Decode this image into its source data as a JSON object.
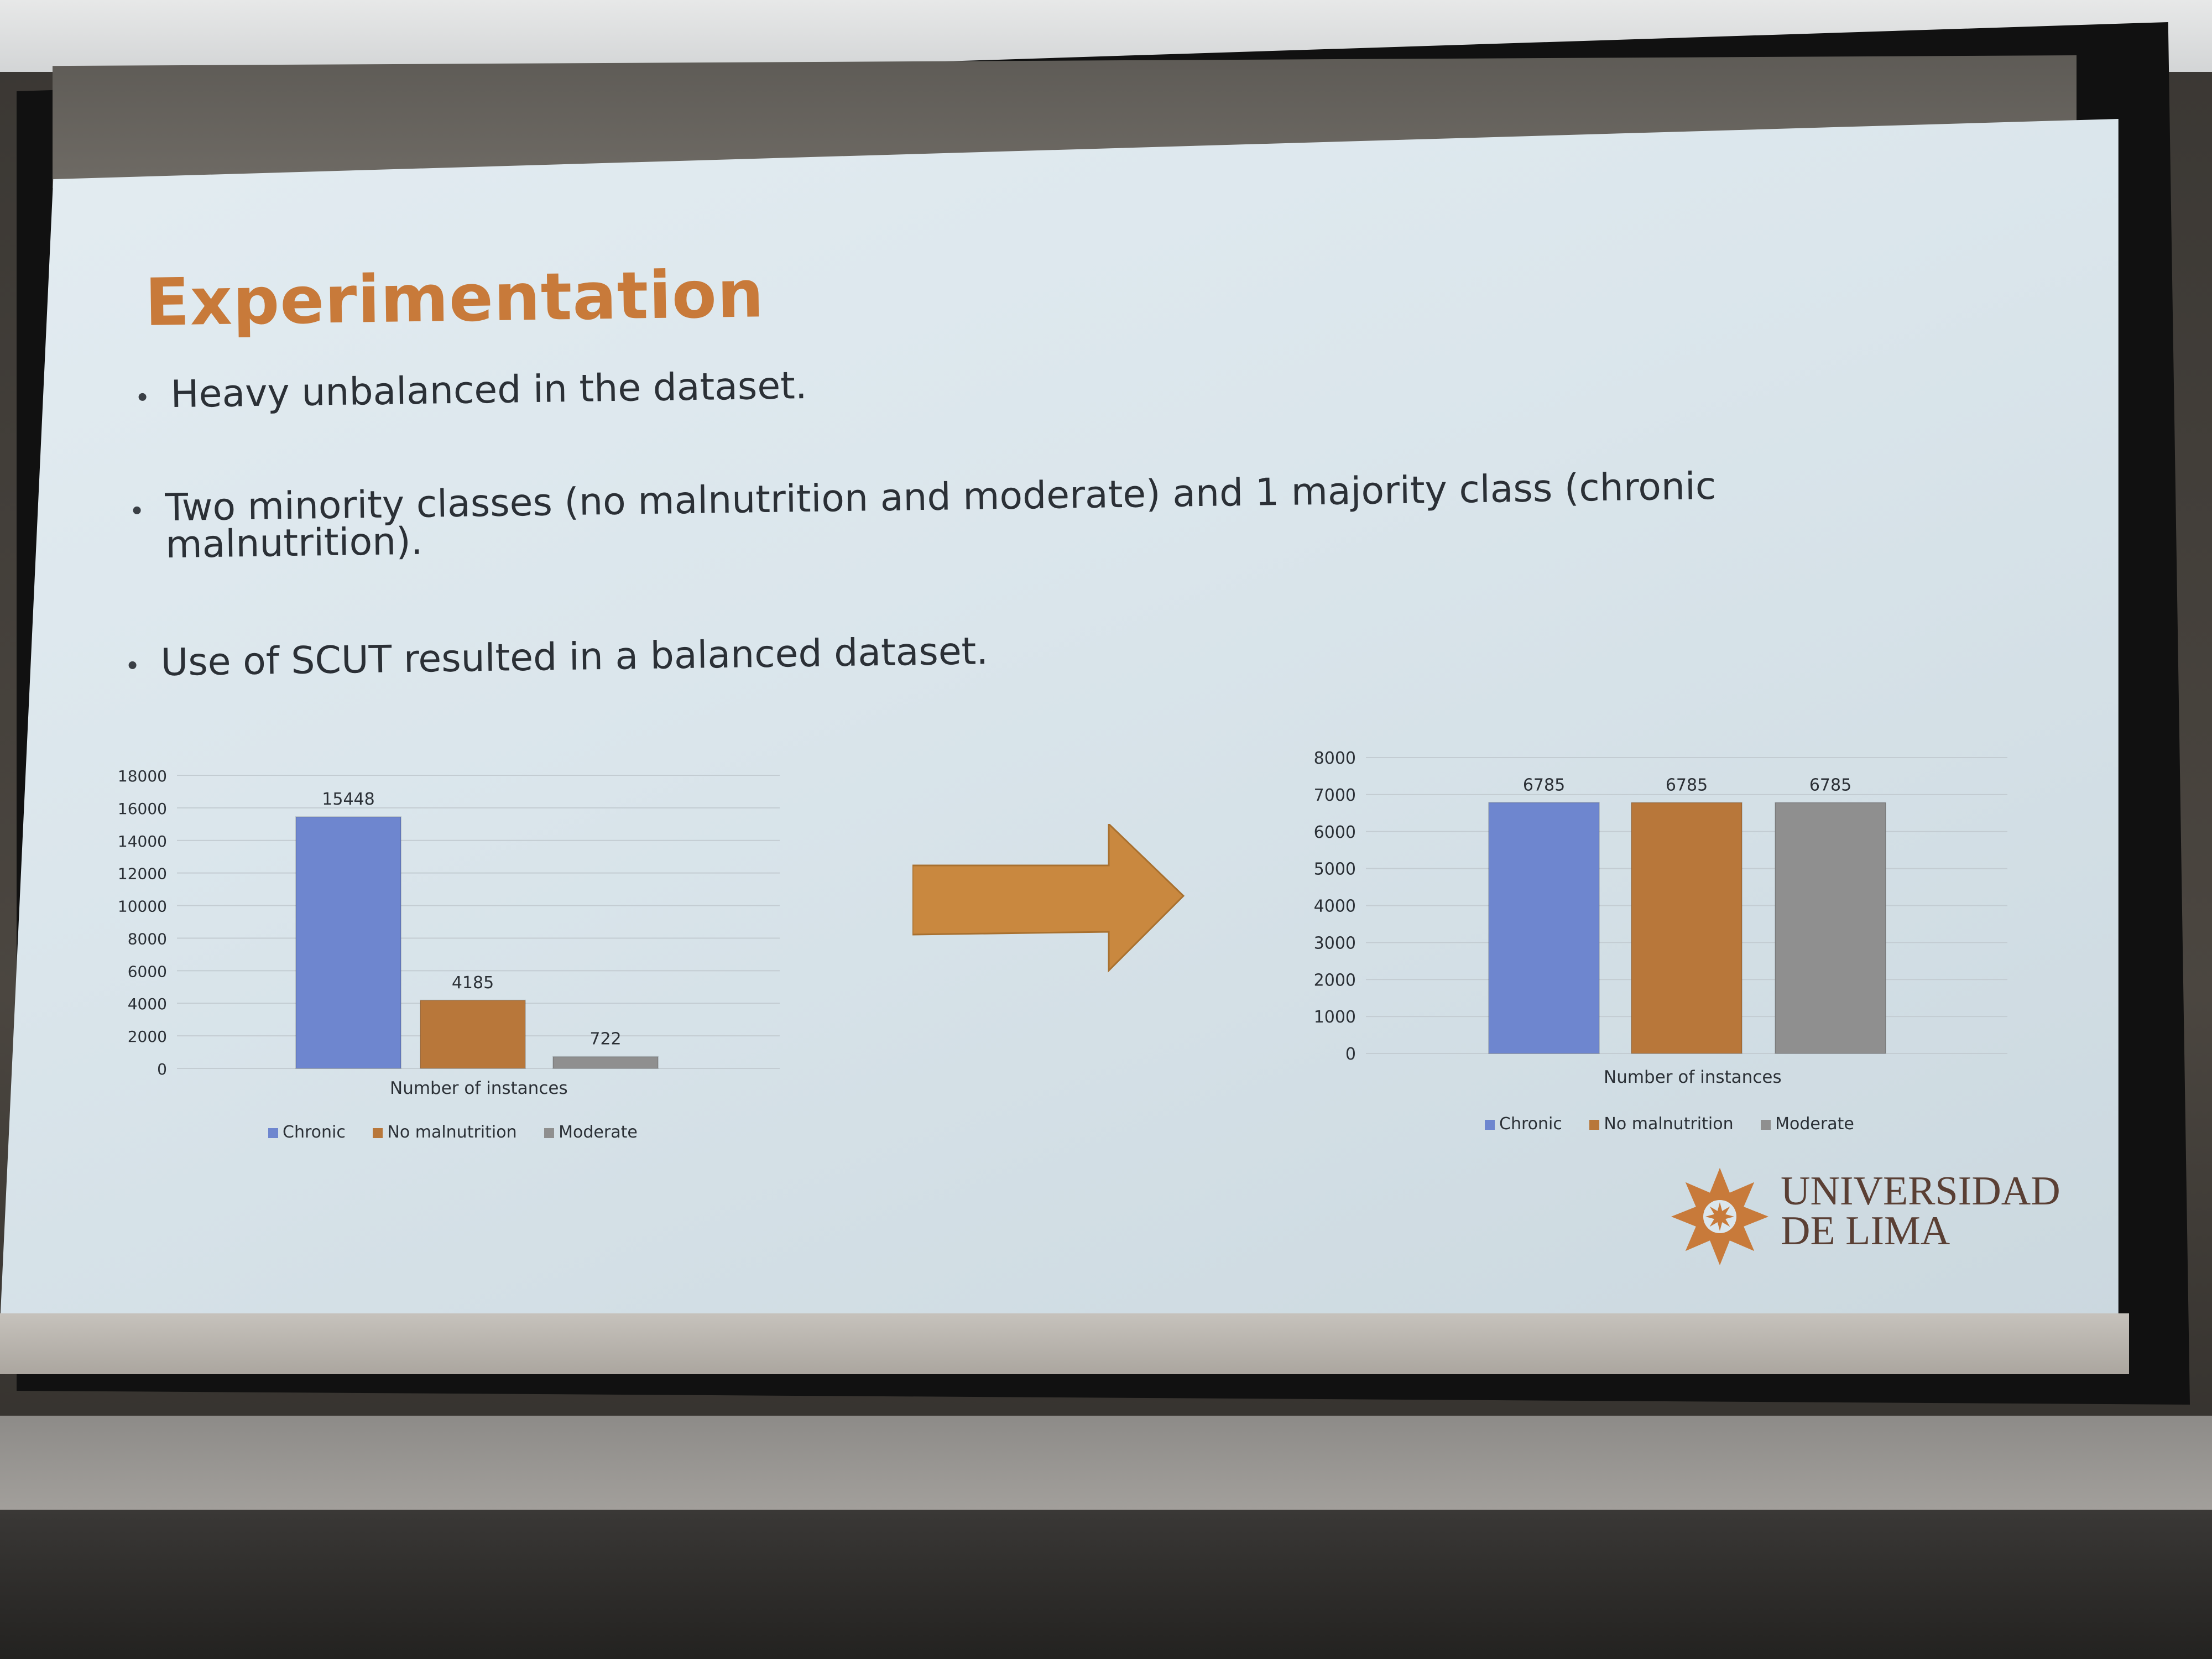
{
  "slide": {
    "title": "Experimentation",
    "bullets": [
      {
        "line1": "Heavy unbalanced in the dataset.",
        "line2": ""
      },
      {
        "line1": "Two minority classes (no malnutrition and moderate) and 1 majority class (chronic",
        "line2": "malnutrition)."
      },
      {
        "line1": "Use of SCUT resulted in a balanced dataset.",
        "line2": ""
      }
    ]
  },
  "colors": {
    "title": "#c87a3a",
    "chronic": "#6e86cf",
    "no_malnutrition": "#b8773a",
    "moderate": "#8f8f8f",
    "arrow": "#c9883f",
    "logo": "#c87a3a"
  },
  "chart_data": [
    {
      "type": "bar",
      "categories": [
        "Chronic",
        "No malnutrition",
        "Moderate"
      ],
      "values": [
        15448,
        4185,
        722
      ],
      "data_labels": [
        "15448",
        "4185",
        "722"
      ],
      "xlabel": "Number of instances",
      "ylim": [
        0,
        18000
      ],
      "yticks": [
        "0",
        "2000",
        "4000",
        "6000",
        "8000",
        "10000",
        "12000",
        "14000",
        "16000",
        "18000"
      ],
      "legend": [
        "Chronic",
        "No malnutrition",
        "Moderate"
      ],
      "legend_position": "bottom",
      "grid": true
    },
    {
      "type": "bar",
      "categories": [
        "Chronic",
        "No malnutrition",
        "Moderate"
      ],
      "values": [
        6785,
        6785,
        6785
      ],
      "data_labels": [
        "6785",
        "6785",
        "6785"
      ],
      "xlabel": "Number of instances",
      "ylim": [
        0,
        8000
      ],
      "yticks": [
        "0",
        "1000",
        "2000",
        "3000",
        "4000",
        "5000",
        "6000",
        "7000",
        "8000"
      ],
      "legend": [
        "Chronic",
        "No malnutrition",
        "Moderate"
      ],
      "legend_position": "bottom",
      "grid": true
    }
  ],
  "logo": {
    "line1": "UNIVERSIDAD",
    "line2": "DE LIMA",
    "icon": "star-flower-icon"
  }
}
